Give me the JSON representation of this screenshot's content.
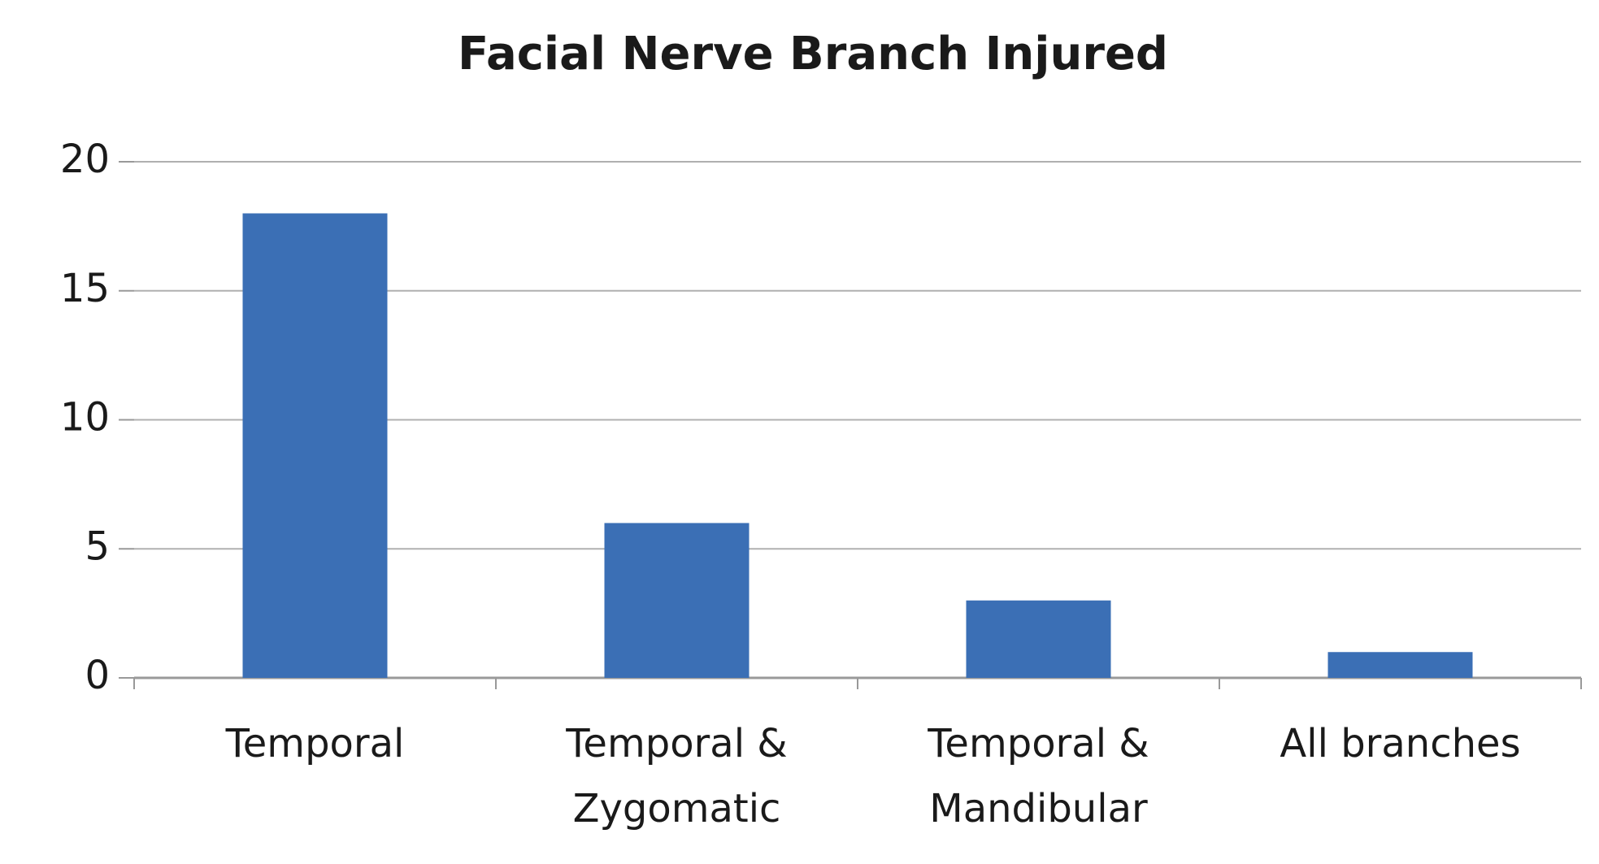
{
  "chart_data": {
    "type": "bar",
    "title": "Facial Nerve Branch Injured",
    "categories": [
      "Temporal",
      "Temporal & Zygomatic",
      "Temporal & Mandibular",
      "All branches"
    ],
    "values": [
      18,
      6,
      3,
      1
    ],
    "color": "#3b6fb5",
    "ylim": [
      0,
      20
    ],
    "yticks": [
      0,
      5,
      10,
      15,
      20
    ],
    "grid": true
  }
}
